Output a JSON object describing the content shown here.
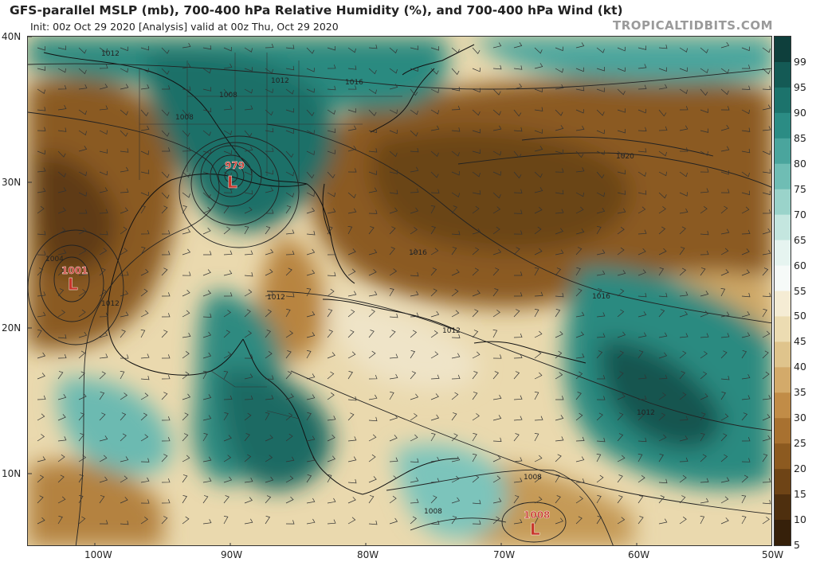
{
  "header": {
    "title": "GFS-parallel MSLP (mb), 700-400 hPa Relative Humidity (%), and 700-400 hPa Wind (kt)",
    "subtitle": "Init: 00z Oct 29 2020   [Analysis]   valid at 00z Thu, Oct 29 2020",
    "brand": "TROPICALTIDBITS.COM"
  },
  "axes": {
    "lat_labels": [
      "40N",
      "30N",
      "20N",
      "10N"
    ],
    "lon_labels": [
      "100W",
      "90W",
      "80W",
      "70W",
      "60W",
      "50W"
    ]
  },
  "colorbar": {
    "ticks": [
      "99",
      "95",
      "90",
      "85",
      "80",
      "75",
      "70",
      "65",
      "60",
      "55",
      "50",
      "45",
      "40",
      "35",
      "30",
      "25",
      "20",
      "15",
      "10",
      "5"
    ],
    "colors": [
      "#0e3f3c",
      "#145a55",
      "#1c736c",
      "#2b8c84",
      "#4aa59d",
      "#6fbdb4",
      "#9ad3ca",
      "#c4e6df",
      "#e6f4f0",
      "#f6faf8",
      "#f5ecd4",
      "#ecdcb2",
      "#dfc48c",
      "#d3aa6a",
      "#c18c47",
      "#a87130",
      "#8c5a20",
      "#6e4416",
      "#4e2f0e",
      "#36200a"
    ]
  },
  "lows": [
    {
      "pressure": "979",
      "symbol": "L"
    },
    {
      "pressure": "1001",
      "symbol": "L"
    },
    {
      "pressure": "1008",
      "symbol": "L"
    }
  ],
  "isobar_labels": [
    "1012",
    "1012",
    "1016",
    "1008",
    "1008",
    "1020",
    "1016",
    "1016",
    "1012",
    "1012",
    "1012",
    "1004",
    "1012",
    "1008",
    "1008"
  ]
}
